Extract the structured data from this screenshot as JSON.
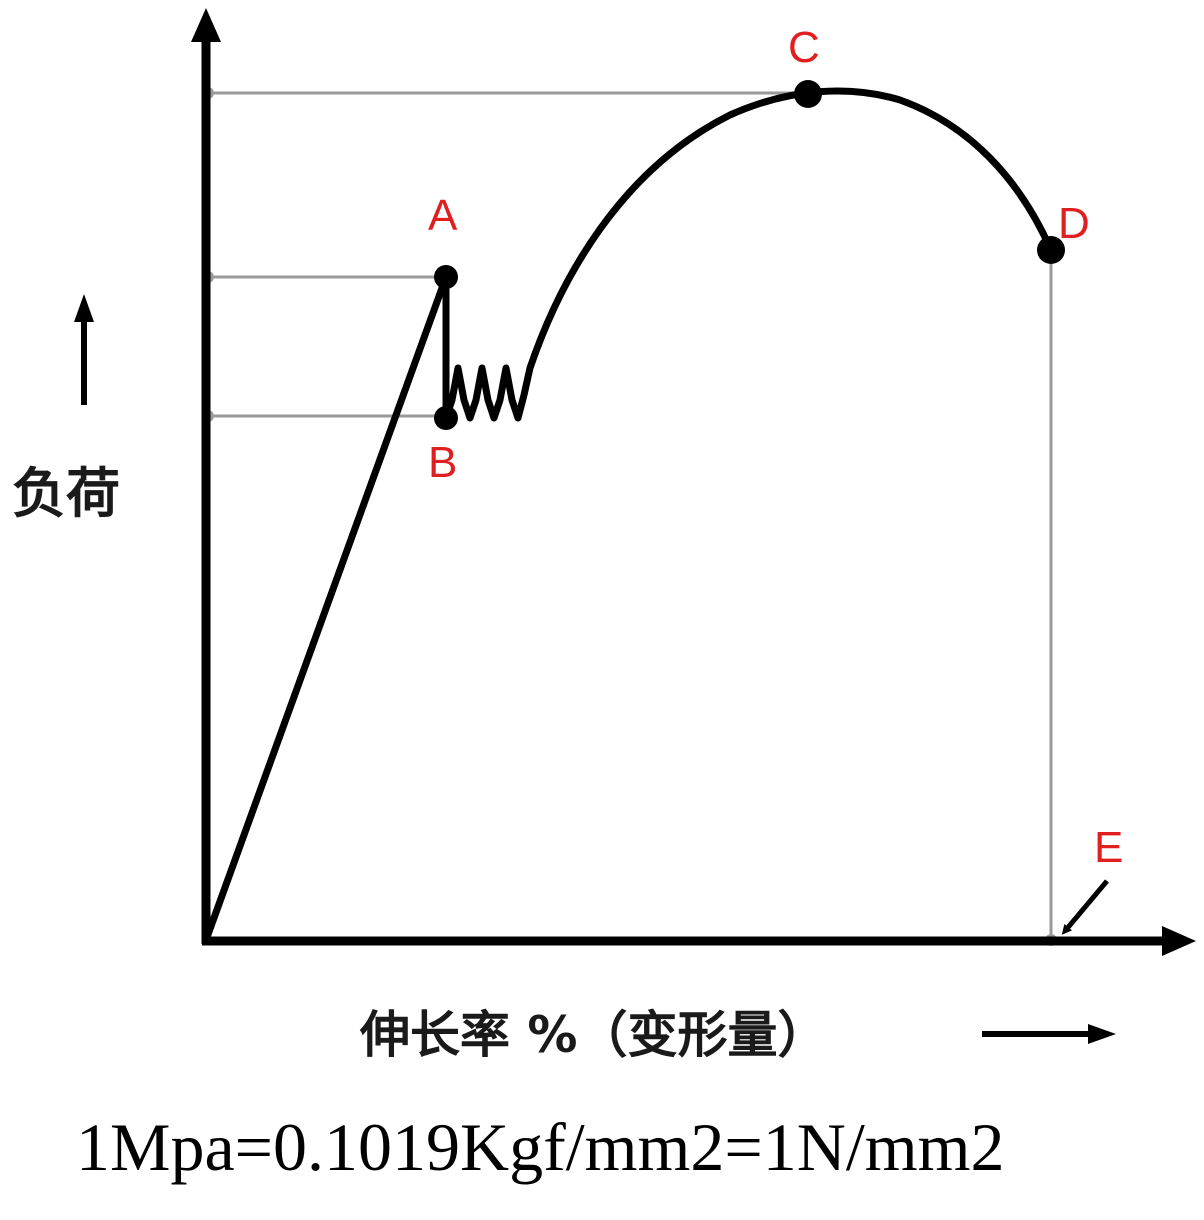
{
  "diagram": {
    "y_axis_label": "负荷",
    "x_axis_label": "伸长率 %（变形量）",
    "formula": "1Mpa=0.1019Kgf/mm2=1N/mm2",
    "points": [
      {
        "id": "A",
        "label": "A"
      },
      {
        "id": "B",
        "label": "B"
      },
      {
        "id": "C",
        "label": "C"
      },
      {
        "id": "D",
        "label": "D"
      },
      {
        "id": "E",
        "label": "E"
      }
    ],
    "colors": {
      "curve": "#000000",
      "point_labels": "#e02020",
      "guide_lines": "#9a9a9a"
    }
  }
}
